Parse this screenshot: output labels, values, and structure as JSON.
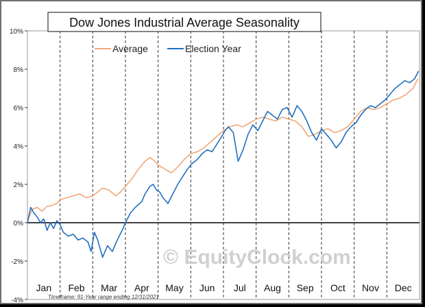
{
  "chart_data": {
    "type": "line",
    "title": "Dow Jones Industrial Average Seasonality",
    "xlabel": "",
    "ylabel": "",
    "ylim": [
      -4,
      10
    ],
    "y_ticks": [
      "10%",
      "8%",
      "6%",
      "4%",
      "2%",
      "0%",
      "-2%",
      "-4%"
    ],
    "y_tick_values": [
      10,
      8,
      6,
      4,
      2,
      0,
      -2,
      -4
    ],
    "months": [
      "Jan",
      "Feb",
      "Mar",
      "Apr",
      "May",
      "Jun",
      "Jul",
      "Aug",
      "Sep",
      "Oct",
      "Nov",
      "Dec"
    ],
    "x_range": [
      0,
      12
    ],
    "grid": "vertical dashed month separators",
    "legend_position": "top-center",
    "watermark": "© EquityClock.com",
    "footnote": "Timeframe: 91-Year range ending 12/31/2021",
    "series": [
      {
        "name": "Average",
        "color": "#f0a878",
        "x": [
          0,
          0.15,
          0.3,
          0.45,
          0.6,
          0.75,
          0.9,
          1.0,
          1.2,
          1.4,
          1.6,
          1.8,
          2.0,
          2.15,
          2.3,
          2.5,
          2.7,
          2.85,
          3.0,
          3.2,
          3.4,
          3.6,
          3.75,
          3.9,
          4.0,
          4.2,
          4.4,
          4.6,
          4.8,
          5.0,
          5.2,
          5.4,
          5.6,
          5.8,
          6.0,
          6.2,
          6.4,
          6.6,
          6.8,
          7.0,
          7.2,
          7.4,
          7.6,
          7.8,
          8.0,
          8.2,
          8.4,
          8.6,
          8.8,
          9.0,
          9.2,
          9.4,
          9.6,
          9.8,
          10.0,
          10.2,
          10.4,
          10.6,
          10.8,
          11.0,
          11.2,
          11.4,
          11.6,
          11.8,
          11.95
        ],
        "values": [
          0.1,
          0.7,
          0.8,
          0.6,
          0.85,
          0.9,
          1.0,
          1.2,
          1.3,
          1.4,
          1.5,
          1.3,
          1.4,
          1.6,
          1.8,
          1.7,
          1.4,
          1.6,
          1.9,
          2.3,
          2.8,
          3.2,
          3.4,
          3.2,
          3.0,
          2.8,
          2.6,
          2.9,
          3.3,
          3.6,
          3.7,
          3.9,
          4.2,
          4.5,
          4.8,
          5.0,
          5.1,
          5.0,
          5.2,
          5.4,
          5.5,
          5.4,
          5.3,
          5.5,
          5.4,
          5.3,
          5.0,
          4.5,
          4.6,
          4.8,
          4.9,
          4.7,
          4.8,
          5.0,
          5.4,
          5.8,
          6.0,
          5.9,
          6.0,
          6.2,
          6.4,
          6.5,
          6.7,
          7.0,
          7.5
        ]
      },
      {
        "name": "Election Year",
        "color": "#1f6fbf",
        "x": [
          0,
          0.1,
          0.2,
          0.3,
          0.4,
          0.5,
          0.6,
          0.7,
          0.8,
          0.9,
          1.0,
          1.1,
          1.25,
          1.4,
          1.55,
          1.7,
          1.85,
          1.95,
          2.05,
          2.15,
          2.3,
          2.45,
          2.6,
          2.75,
          2.9,
          3.0,
          3.15,
          3.3,
          3.5,
          3.6,
          3.75,
          3.85,
          3.95,
          4.05,
          4.15,
          4.3,
          4.45,
          4.6,
          4.75,
          4.9,
          5.05,
          5.2,
          5.35,
          5.5,
          5.65,
          5.8,
          5.95,
          6.05,
          6.15,
          6.3,
          6.45,
          6.6,
          6.75,
          6.9,
          7.05,
          7.2,
          7.35,
          7.5,
          7.65,
          7.8,
          7.95,
          8.1,
          8.25,
          8.4,
          8.55,
          8.7,
          8.85,
          9.0,
          9.15,
          9.3,
          9.45,
          9.6,
          9.75,
          9.9,
          10.05,
          10.2,
          10.35,
          10.5,
          10.65,
          10.8,
          10.95,
          11.1,
          11.25,
          11.4,
          11.55,
          11.7,
          11.85,
          11.97
        ],
        "values": [
          0.0,
          0.8,
          0.5,
          0.3,
          0.0,
          0.2,
          -0.4,
          0.0,
          -0.3,
          0.1,
          -0.1,
          -0.5,
          -0.7,
          -0.6,
          -0.9,
          -0.8,
          -1.0,
          -1.5,
          -0.5,
          -0.9,
          -1.8,
          -1.2,
          -1.5,
          -0.9,
          -0.4,
          0.0,
          0.5,
          0.8,
          1.1,
          1.5,
          1.9,
          2.0,
          1.7,
          1.6,
          1.3,
          1.0,
          1.5,
          2.0,
          2.4,
          2.8,
          3.1,
          3.3,
          3.6,
          3.8,
          3.7,
          4.1,
          4.5,
          4.8,
          5.0,
          4.7,
          3.2,
          3.8,
          4.6,
          5.1,
          4.8,
          5.3,
          5.8,
          5.6,
          5.4,
          5.9,
          6.0,
          5.5,
          6.1,
          5.8,
          5.3,
          4.7,
          4.3,
          4.9,
          4.6,
          4.3,
          3.9,
          4.2,
          4.7,
          5.0,
          5.2,
          5.6,
          5.9,
          6.1,
          6.0,
          6.2,
          6.4,
          6.7,
          7.0,
          7.2,
          7.4,
          7.3,
          7.5,
          7.9
        ]
      }
    ]
  }
}
